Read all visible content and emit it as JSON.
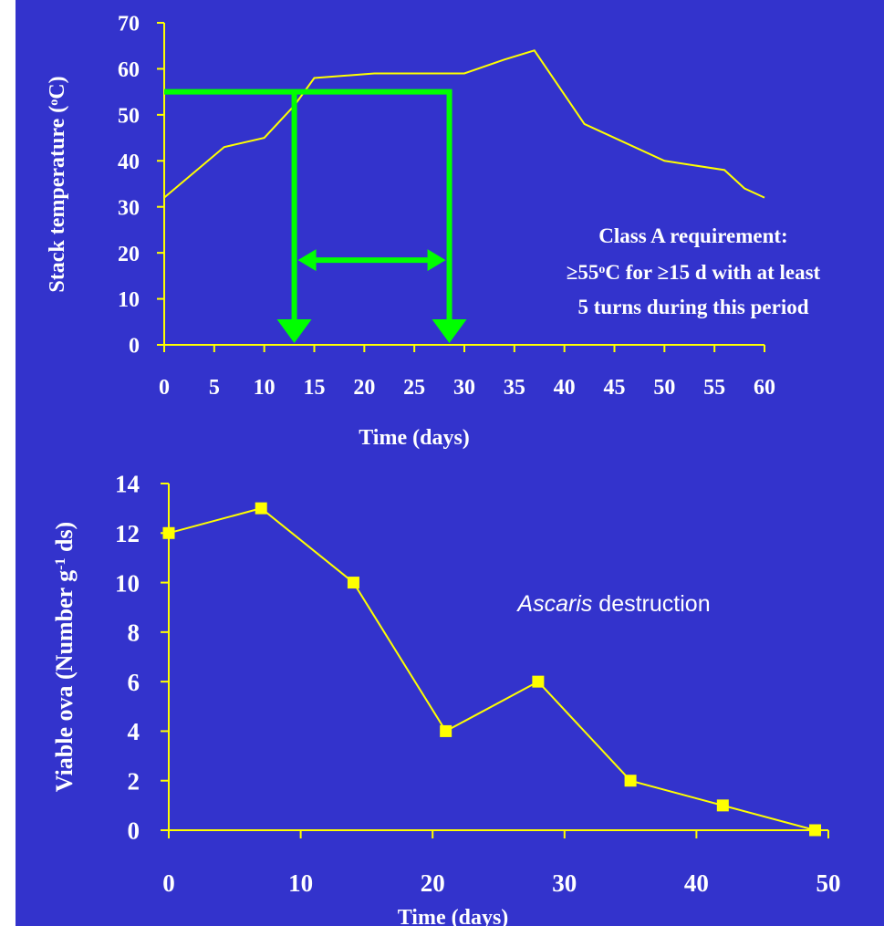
{
  "chart_data": [
    {
      "type": "line",
      "title": "",
      "xlabel": "Time (days)",
      "ylabel_main": "Stack temperature (",
      "ylabel_sup": "o",
      "ylabel_end": "C)",
      "xlim": [
        0,
        60
      ],
      "ylim": [
        0,
        70
      ],
      "x_ticks": [
        "0",
        "5",
        "10",
        "15",
        "20",
        "25",
        "30",
        "35",
        "40",
        "45",
        "50",
        "55",
        "60"
      ],
      "y_ticks": [
        "0",
        "10",
        "20",
        "30",
        "40",
        "50",
        "60",
        "70"
      ],
      "grid": false,
      "series": [
        {
          "x": [
            0,
            6,
            10,
            13,
            15,
            21,
            30,
            34,
            37,
            42,
            50,
            56,
            58,
            60
          ],
          "y": [
            32,
            43,
            45,
            52,
            58,
            59,
            59,
            62,
            64,
            48,
            40,
            38,
            34,
            32
          ]
        }
      ],
      "annotation": {
        "line1": "Class A requirement:",
        "line2_a": "≥55",
        "line2_sup": "o",
        "line2_b": "C for ≥15 d with at least",
        "line3": "5 turns during this period"
      },
      "requirement_overlay": {
        "threshold_y": 55,
        "start_x": 13,
        "end_x": 28.5,
        "arrow_level_y": 19
      }
    },
    {
      "type": "line",
      "title": "",
      "xlabel": "Time (days)",
      "ylabel_main": "Viable ova  (Number g",
      "ylabel_sup": "-1",
      "ylabel_end": " ds)",
      "xlim": [
        0,
        50
      ],
      "ylim": [
        0,
        14
      ],
      "x_ticks": [
        "0",
        "10",
        "20",
        "30",
        "40",
        "50"
      ],
      "y_ticks": [
        "0",
        "2",
        "4",
        "6",
        "8",
        "10",
        "12",
        "14"
      ],
      "grid": false,
      "series": [
        {
          "x": [
            0,
            7,
            14,
            21,
            28,
            35,
            42,
            49
          ],
          "y": [
            12,
            13,
            10,
            4,
            6,
            2,
            1,
            0
          ]
        }
      ],
      "annotation": {
        "italic": "Ascaris",
        "rest": " destruction"
      }
    }
  ],
  "colors": {
    "background": "#3333cc",
    "data": "#ffff00",
    "text": "#ffffff",
    "requirement": "#00ff00"
  }
}
